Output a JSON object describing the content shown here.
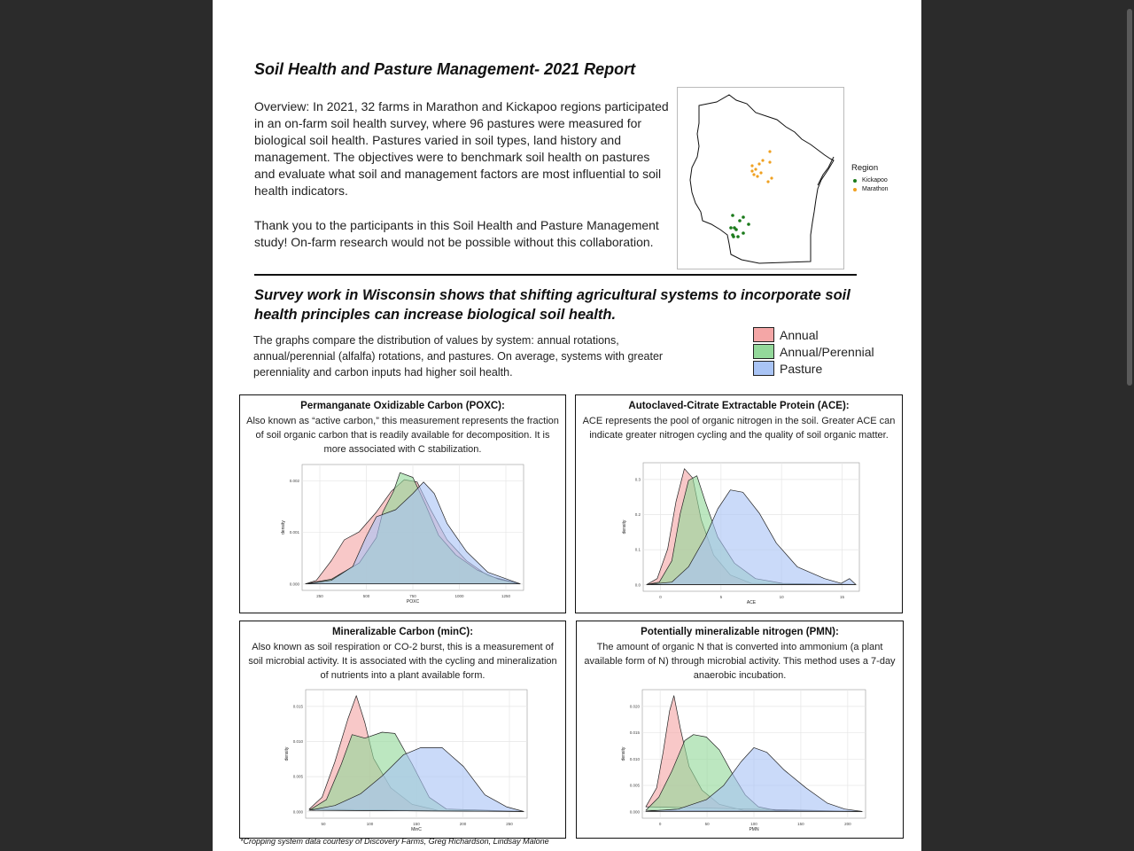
{
  "report": {
    "title": "Soil Health and Pasture Management- 2021 Report",
    "overview": "Overview: In 2021, 32 farms in Marathon and Kickapoo regions participated in an on-farm soil health survey, where 96 pastures were measured for biological soil health. Pastures varied in soil types, land history and management. The objectives were to benchmark soil health on pastures and evaluate what soil and management factors are most influential to soil health indicators.",
    "thanks": "Thank you to the participants in this Soil Health and Pasture Management study! On-farm research would not be possible without this collaboration.",
    "headline": "Survey work in Wisconsin shows that shifting agricultural systems to incorporate soil health principles can increase biological soil health.",
    "intro": "The graphs compare the distribution of values by system: annual rotations, annual/perennial (alfalfa) rotations, and pastures. On average, systems with greater perenniality and carbon inputs had higher soil health.",
    "footnote": "*Cropping system data courtesy of Discovery Farms, Greg Richardson, Lindsay Malone"
  },
  "legend": {
    "items": [
      {
        "label": "Annual",
        "color": "#f4a6a6"
      },
      {
        "label": "Annual/Perennial",
        "color": "#93d89a"
      },
      {
        "label": "Pasture",
        "color": "#a9c4f5"
      }
    ]
  },
  "map": {
    "legend_title": "Region",
    "regions": [
      {
        "label": "Kickapoo",
        "color": "#1a7a1a"
      },
      {
        "label": "Marathon",
        "color": "#f0a020"
      }
    ]
  },
  "panels": [
    {
      "title": "Permanganate Oxidizable Carbon (POXC):",
      "desc": "Also known as “active carbon,” this measurement represents the fraction of soil organic carbon that is readily available for decomposition. It is more associated with C stabilization.",
      "chart_data": {
        "type": "area",
        "xlabel": "POXC",
        "ylabel": "density",
        "xticks": [
          "250",
          "500",
          "750",
          "1000",
          "1250"
        ],
        "yticks": [
          "0.000",
          "0.001",
          "0.002"
        ]
      }
    },
    {
      "title": "Autoclaved-Citrate Extractable Protein (ACE):",
      "desc": "ACE represents the pool of organic nitrogen in the soil.  Greater ACE can indicate greater nitrogen cycling and the quality of soil organic matter.",
      "chart_data": {
        "type": "area",
        "xlabel": "ACE",
        "ylabel": "density",
        "xticks": [
          "0",
          "5",
          "10",
          "15"
        ],
        "yticks": [
          "0.0",
          "0.1",
          "0.2",
          "0.3"
        ]
      }
    },
    {
      "title": "Mineralizable Carbon (minC):",
      "desc": "Also known as soil respiration or CO-2 burst, this is a measurement of soil microbial activity. It is associated with the cycling and mineralization of nutrients into a plant available form.",
      "chart_data": {
        "type": "area",
        "xlabel": "MinC",
        "ylabel": "density",
        "xticks": [
          "50",
          "100",
          "150",
          "200",
          "250"
        ],
        "yticks": [
          "0.000",
          "0.005",
          "0.010",
          "0.015"
        ]
      }
    },
    {
      "title": "Potentially mineralizable nitrogen (PMN):",
      "desc": "The amount of organic N that is converted into ammonium (a plant available form of N) through microbial activity. This method uses a 7-day anaerobic incubation.",
      "chart_data": {
        "type": "area",
        "xlabel": "PMN",
        "ylabel": "density",
        "xticks": [
          "0",
          "50",
          "100",
          "150",
          "200"
        ],
        "yticks": [
          "0.000",
          "0.005",
          "0.010",
          "0.015",
          "0.020"
        ]
      }
    }
  ]
}
